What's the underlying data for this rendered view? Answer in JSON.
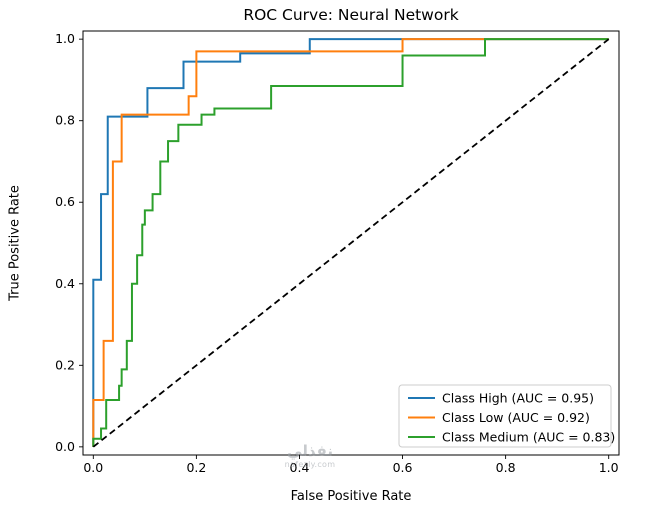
{
  "watermark": {
    "line1": "نفذلي",
    "line2": "nafezly.com"
  },
  "chart_data": {
    "type": "line",
    "title": "ROC Curve: Neural Network",
    "xlabel": "False Positive Rate",
    "ylabel": "True Positive Rate",
    "xlim": [
      -0.02,
      1.02
    ],
    "ylim": [
      -0.02,
      1.02
    ],
    "xticks": [
      0,
      0.2,
      0.4,
      0.6,
      0.8,
      1.0
    ],
    "yticks": [
      0,
      0.2,
      0.4,
      0.6,
      0.8,
      1.0
    ],
    "grid": false,
    "legend_position": "lower right",
    "series": [
      {
        "key": "roc-curve-class-high",
        "name": "Class High (AUC = 0.95)",
        "auc": 0.95,
        "color": "#1f77b4",
        "line_style": "solid",
        "in_legend": true,
        "points": [
          [
            0,
            0
          ],
          [
            0,
            0.41
          ],
          [
            0.015,
            0.41
          ],
          [
            0.015,
            0.62
          ],
          [
            0.028,
            0.62
          ],
          [
            0.028,
            0.81
          ],
          [
            0.105,
            0.81
          ],
          [
            0.105,
            0.88
          ],
          [
            0.175,
            0.88
          ],
          [
            0.175,
            0.945
          ],
          [
            0.285,
            0.945
          ],
          [
            0.285,
            0.965
          ],
          [
            0.42,
            0.965
          ],
          [
            0.42,
            1
          ],
          [
            1,
            1
          ]
        ]
      },
      {
        "key": "roc-curve-class-low",
        "name": "Class Low (AUC = 0.92)",
        "auc": 0.92,
        "color": "#ff7f0e",
        "line_style": "solid",
        "in_legend": true,
        "points": [
          [
            0,
            0
          ],
          [
            0,
            0.115
          ],
          [
            0.02,
            0.115
          ],
          [
            0.02,
            0.26
          ],
          [
            0.038,
            0.26
          ],
          [
            0.038,
            0.7
          ],
          [
            0.055,
            0.7
          ],
          [
            0.055,
            0.815
          ],
          [
            0.185,
            0.815
          ],
          [
            0.185,
            0.86
          ],
          [
            0.2,
            0.86
          ],
          [
            0.2,
            0.97
          ],
          [
            0.6,
            0.97
          ],
          [
            0.6,
            1
          ],
          [
            1,
            1
          ]
        ]
      },
      {
        "key": "roc-curve-class-medium",
        "name": "Class Medium (AUC = 0.83)",
        "auc": 0.83,
        "color": "#2ca02c",
        "line_style": "solid",
        "in_legend": true,
        "points": [
          [
            0,
            0
          ],
          [
            0,
            0.02
          ],
          [
            0.015,
            0.02
          ],
          [
            0.015,
            0.045
          ],
          [
            0.025,
            0.045
          ],
          [
            0.025,
            0.115
          ],
          [
            0.05,
            0.115
          ],
          [
            0.05,
            0.15
          ],
          [
            0.055,
            0.15
          ],
          [
            0.055,
            0.19
          ],
          [
            0.065,
            0.19
          ],
          [
            0.065,
            0.26
          ],
          [
            0.075,
            0.26
          ],
          [
            0.075,
            0.4
          ],
          [
            0.085,
            0.4
          ],
          [
            0.085,
            0.47
          ],
          [
            0.095,
            0.47
          ],
          [
            0.095,
            0.545
          ],
          [
            0.1,
            0.545
          ],
          [
            0.1,
            0.58
          ],
          [
            0.115,
            0.58
          ],
          [
            0.115,
            0.62
          ],
          [
            0.13,
            0.62
          ],
          [
            0.13,
            0.7
          ],
          [
            0.145,
            0.7
          ],
          [
            0.145,
            0.75
          ],
          [
            0.165,
            0.75
          ],
          [
            0.165,
            0.79
          ],
          [
            0.21,
            0.79
          ],
          [
            0.21,
            0.815
          ],
          [
            0.235,
            0.815
          ],
          [
            0.235,
            0.83
          ],
          [
            0.345,
            0.83
          ],
          [
            0.345,
            0.885
          ],
          [
            0.6,
            0.885
          ],
          [
            0.6,
            0.96
          ],
          [
            0.76,
            0.96
          ],
          [
            0.76,
            1
          ],
          [
            1,
            1
          ]
        ]
      },
      {
        "key": "chance-diagonal-line",
        "name": "chance",
        "color": "#000000",
        "line_style": "dashed",
        "in_legend": false,
        "points": [
          [
            0,
            0
          ],
          [
            1,
            1
          ]
        ]
      }
    ]
  }
}
